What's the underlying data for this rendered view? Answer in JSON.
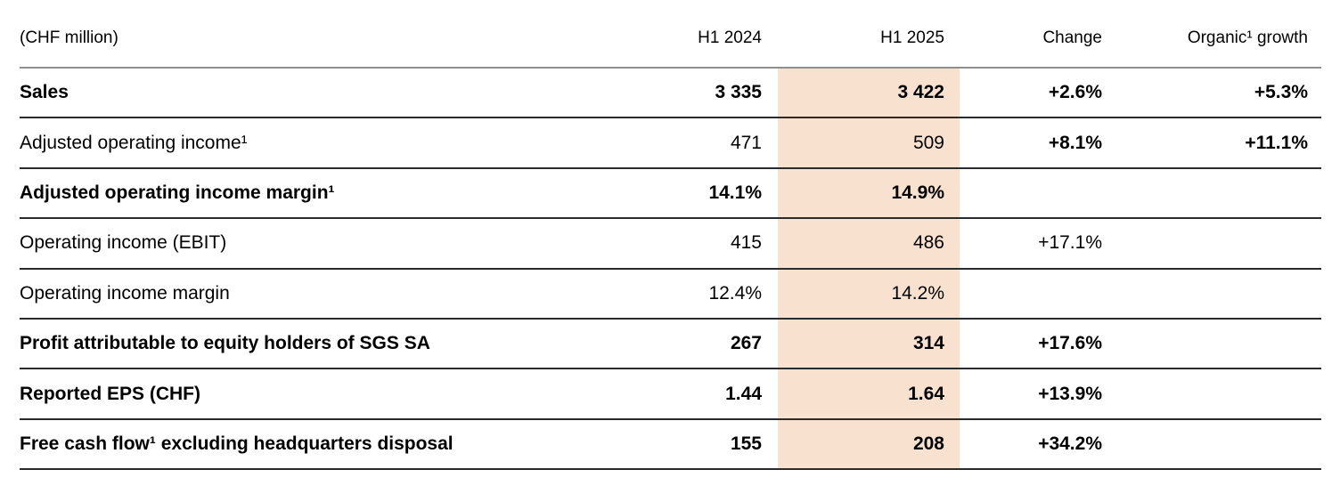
{
  "table": {
    "unit_label": "(CHF million)",
    "columns": {
      "h1_2024": "H1 2024",
      "h1_2025": "H1 2025",
      "change": "Change",
      "organic": "Organic¹ growth"
    },
    "highlight_color": "#f9e1d0",
    "rows": [
      {
        "label": "Sales",
        "h1_2024": "3 335",
        "h1_2025": "3 422",
        "change": "+2.6%",
        "organic": "+5.3%",
        "bold": true,
        "bold_change": true
      },
      {
        "label": "Adjusted operating income¹",
        "h1_2024": "471",
        "h1_2025": "509",
        "change": "+8.1%",
        "organic": "+11.1%",
        "bold": false,
        "bold_change": true
      },
      {
        "label": "Adjusted operating income margin¹",
        "h1_2024": "14.1%",
        "h1_2025": "14.9%",
        "change": "",
        "organic": "",
        "bold": true,
        "bold_change": false
      },
      {
        "label": "Operating income (EBIT)",
        "h1_2024": "415",
        "h1_2025": "486",
        "change": "+17.1%",
        "organic": "",
        "bold": false,
        "bold_change": false
      },
      {
        "label": "Operating income margin",
        "h1_2024": "12.4%",
        "h1_2025": "14.2%",
        "change": "",
        "organic": "",
        "bold": false,
        "bold_change": false
      },
      {
        "label": "Profit attributable to equity holders of SGS SA",
        "h1_2024": "267",
        "h1_2025": "314",
        "change": "+17.6%",
        "organic": "",
        "bold": true,
        "bold_change": true
      },
      {
        "label": "Reported EPS (CHF)",
        "h1_2024": "1.44",
        "h1_2025": "1.64",
        "change": "+13.9%",
        "organic": "",
        "bold": true,
        "bold_change": true
      },
      {
        "label": "Free cash flow¹ excluding headquarters disposal",
        "h1_2024": "155",
        "h1_2025": "208",
        "change": "+34.2%",
        "organic": "",
        "bold": true,
        "bold_change": true
      }
    ]
  }
}
